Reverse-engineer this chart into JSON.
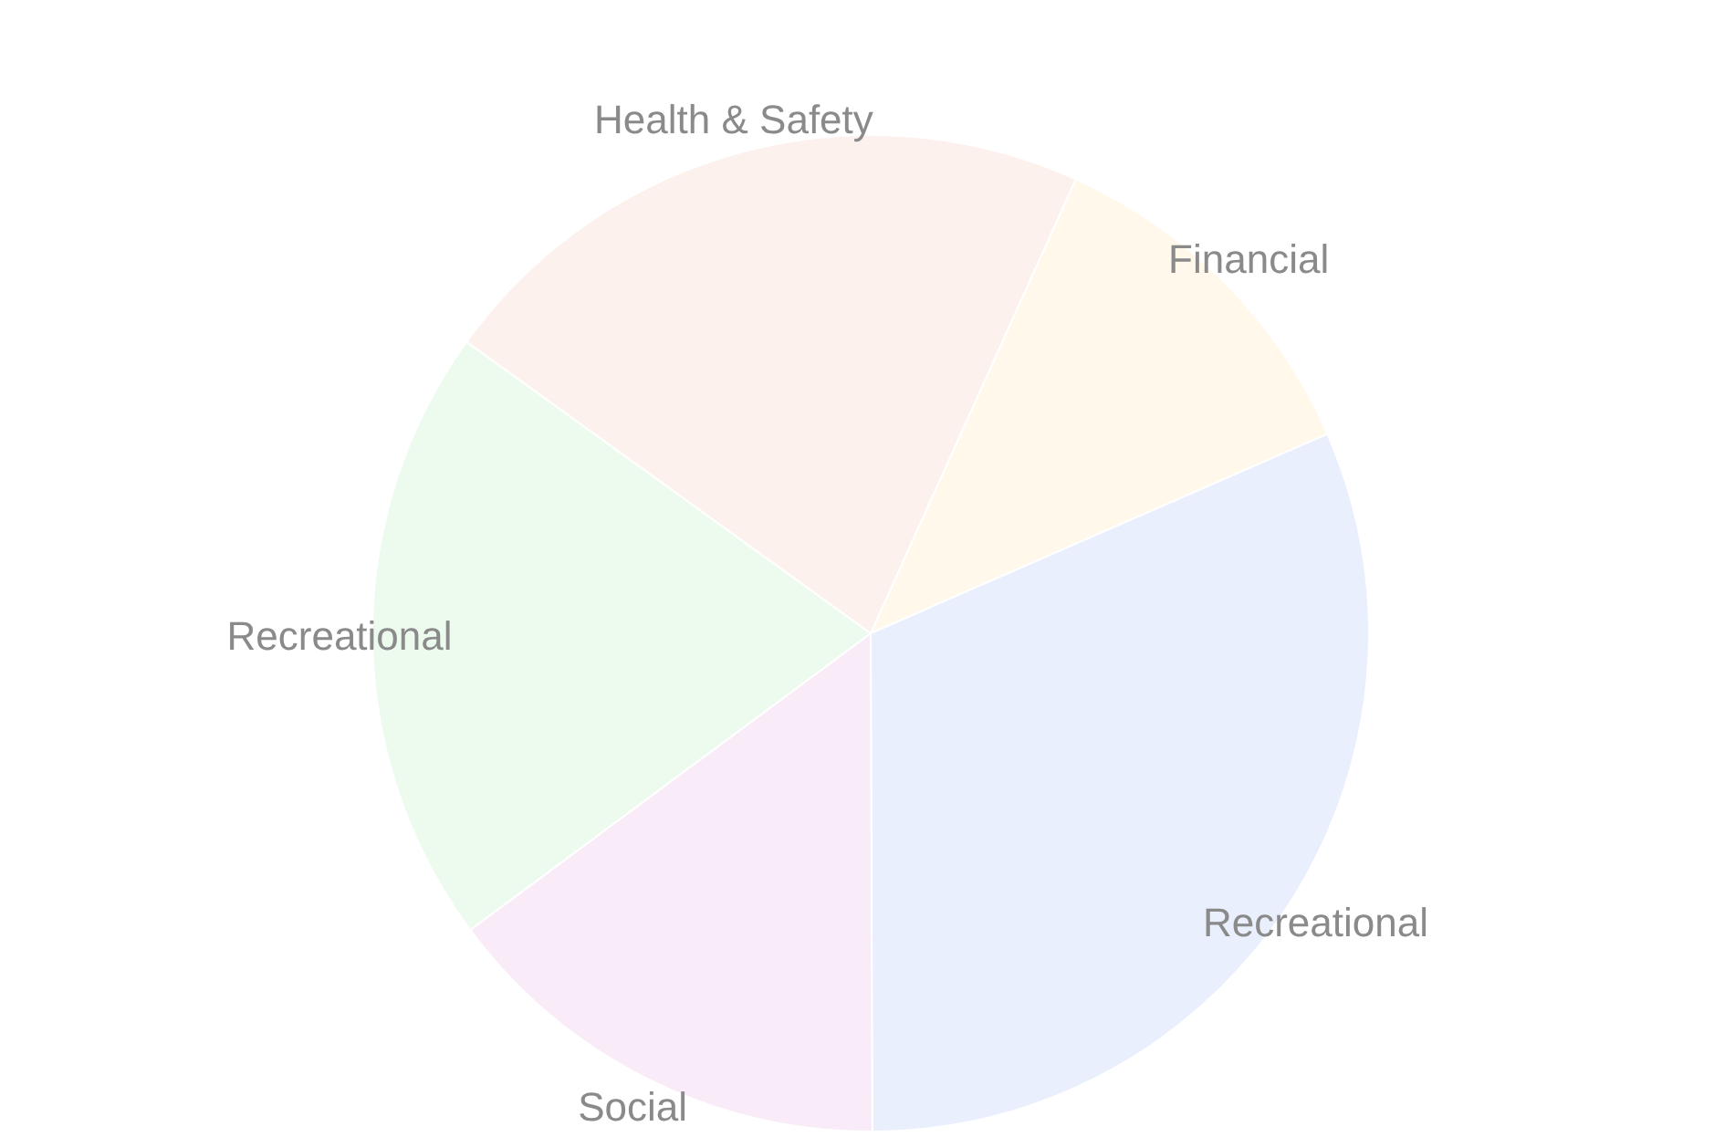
{
  "chart_data": {
    "type": "pie",
    "categories": [
      "Financial",
      "Recreational",
      "Social",
      "Recreational",
      "Health & Safety"
    ],
    "values": [
      11.7,
      31.5,
      14.9,
      20.1,
      21.8
    ],
    "colors": [
      "#fff8eb",
      "#e9effd",
      "#faebf8",
      "#edfbef",
      "#fcf1ec"
    ]
  }
}
